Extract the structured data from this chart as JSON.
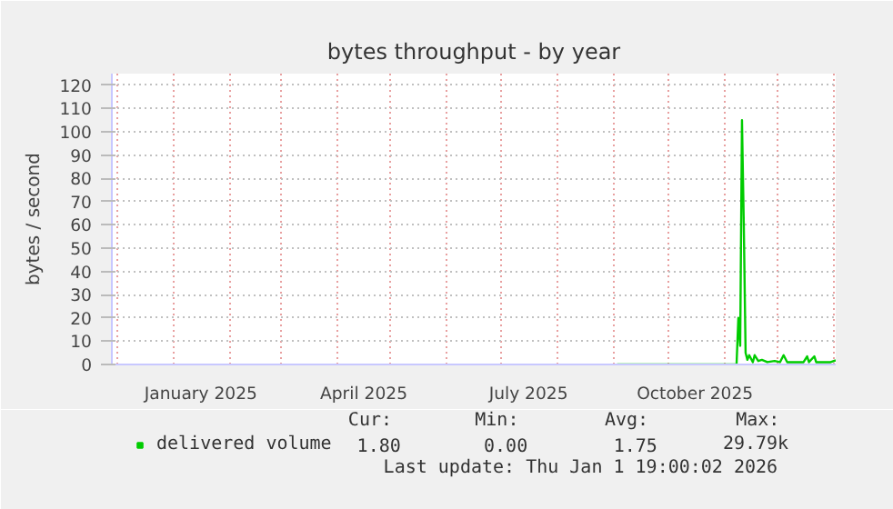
{
  "chart_data": {
    "type": "line",
    "title": "bytes throughput - by year",
    "ylabel": "bytes / second",
    "x": [
      "2025-09-03",
      "2025-11-08",
      "2025-11-09",
      "2025-11-10",
      "2025-11-11",
      "2025-11-12",
      "2025-11-13",
      "2025-11-14",
      "2025-11-15",
      "2025-11-17",
      "2025-11-18",
      "2025-11-20",
      "2025-11-22",
      "2025-11-25",
      "2025-11-29",
      "2025-12-02",
      "2025-12-04",
      "2025-12-06",
      "2025-12-15",
      "2025-12-17",
      "2025-12-18",
      "2025-12-21",
      "2025-12-22",
      "2025-12-30",
      "2026-01-01T19:00"
    ],
    "series": [
      {
        "name": "delivered volume",
        "color": "#00cc00",
        "values": [
          0,
          0,
          20,
          8,
          105,
          60,
          5,
          2,
          4,
          1,
          4,
          1.5,
          2,
          1,
          1.5,
          1,
          4,
          1,
          1,
          3.5,
          1,
          3.5,
          1,
          1,
          1.8
        ]
      }
    ],
    "xlim": [
      "2024-11-27T19:00",
      "2026-01-01T19:00"
    ],
    "xticks": [
      {
        "value": "2024-12-01",
        "label": null
      },
      {
        "value": "2025-01-01",
        "label": null
      },
      {
        "value": "2025-01-16",
        "label": "January 2025"
      },
      {
        "value": "2025-02-01",
        "label": null
      },
      {
        "value": "2025-03-01",
        "label": null
      },
      {
        "value": "2025-04-01",
        "label": null
      },
      {
        "value": "2025-04-16",
        "label": "April 2025"
      },
      {
        "value": "2025-05-01",
        "label": null
      },
      {
        "value": "2025-06-01",
        "label": null
      },
      {
        "value": "2025-07-01",
        "label": null
      },
      {
        "value": "2025-07-16",
        "label": "July 2025"
      },
      {
        "value": "2025-08-01",
        "label": null
      },
      {
        "value": "2025-09-01",
        "label": null
      },
      {
        "value": "2025-10-01",
        "label": null
      },
      {
        "value": "2025-10-16",
        "label": "October 2025"
      },
      {
        "value": "2025-11-01",
        "label": null
      },
      {
        "value": "2025-12-01",
        "label": null
      },
      {
        "value": "2026-01-01",
        "label": null
      }
    ],
    "ylim": [
      0,
      125
    ],
    "yticks": [
      0,
      10,
      20,
      30,
      40,
      50,
      60,
      70,
      80,
      90,
      100,
      110,
      120
    ],
    "grid": true,
    "legend": "bottom",
    "marker": "none",
    "line_style": "solid",
    "annotations": [
      "Cur:",
      "Min:",
      "Avg:",
      "Max:",
      "1.80",
      "0.00",
      "1.75",
      "29.79k",
      "Last update: Thu Jan  1 19:00:02 2026"
    ]
  }
}
